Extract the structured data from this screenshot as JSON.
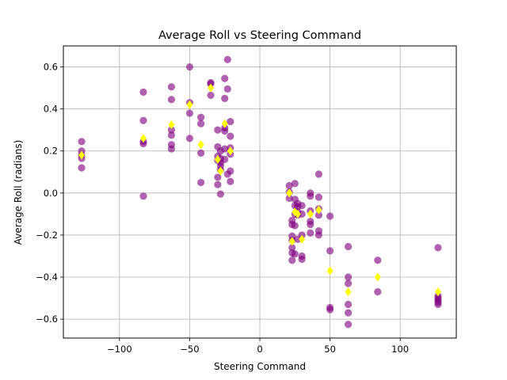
{
  "chart_data": {
    "type": "scatter",
    "title": "Average Roll vs Steering Command",
    "xlabel": "Steering Command",
    "ylabel": "Average Roll (radians)",
    "xlim": [
      -140,
      140
    ],
    "ylim": [
      -0.69,
      0.7
    ],
    "x_ticks": [
      -100,
      -50,
      0,
      50,
      100
    ],
    "x_tick_labels": [
      "−100",
      "−50",
      "0",
      "50",
      "100"
    ],
    "y_ticks": [
      -0.6,
      -0.4,
      -0.2,
      0.0,
      0.2,
      0.4,
      0.6
    ],
    "y_tick_labels": [
      "−0.6",
      "−0.4",
      "−0.2",
      "0.0",
      "0.2",
      "0.4",
      "0.6"
    ],
    "grid": true,
    "legend": "none",
    "series": [
      {
        "marker": "circle",
        "color": "#800080",
        "opacity": 0.62,
        "points": [
          [
            -127,
            0.245
          ],
          [
            -127,
            0.2
          ],
          [
            -127,
            0.18
          ],
          [
            -127,
            0.165
          ],
          [
            -127,
            0.12
          ],
          [
            -83,
            0.48
          ],
          [
            -83,
            0.345
          ],
          [
            -83,
            0.245
          ],
          [
            -83,
            0.235
          ],
          [
            -83,
            -0.015
          ],
          [
            -63,
            0.505
          ],
          [
            -63,
            0.445
          ],
          [
            -63,
            0.3
          ],
          [
            -63,
            0.275
          ],
          [
            -63,
            0.23
          ],
          [
            -63,
            0.21
          ],
          [
            -50,
            0.6
          ],
          [
            -50,
            0.43
          ],
          [
            -50,
            0.38
          ],
          [
            -50,
            0.26
          ],
          [
            -42,
            0.36
          ],
          [
            -42,
            0.33
          ],
          [
            -42,
            0.19
          ],
          [
            -42,
            0.05
          ],
          [
            -35,
            0.525
          ],
          [
            -35,
            0.52
          ],
          [
            -35,
            0.465
          ],
          [
            -30,
            0.3
          ],
          [
            -30,
            0.22
          ],
          [
            -30,
            0.175
          ],
          [
            -30,
            0.155
          ],
          [
            -30,
            0.075
          ],
          [
            -30,
            0.04
          ],
          [
            -28,
            0.2
          ],
          [
            -28,
            0.165
          ],
          [
            -28,
            0.145
          ],
          [
            -28,
            0.13
          ],
          [
            -28,
            0.11
          ],
          [
            -28,
            -0.005
          ],
          [
            -25,
            0.545
          ],
          [
            -25,
            0.45
          ],
          [
            -25,
            0.31
          ],
          [
            -25,
            0.295
          ],
          [
            -25,
            0.21
          ],
          [
            -25,
            0.16
          ],
          [
            -23,
            0.635
          ],
          [
            -23,
            0.495
          ],
          [
            -23,
            0.09
          ],
          [
            -21,
            0.34
          ],
          [
            -21,
            0.27
          ],
          [
            -21,
            0.215
          ],
          [
            -21,
            0.185
          ],
          [
            -21,
            0.105
          ],
          [
            -21,
            0.055
          ],
          [
            21,
            0.035
          ],
          [
            21,
            0.005
          ],
          [
            21,
            -0.025
          ],
          [
            23,
            -0.13
          ],
          [
            23,
            -0.15
          ],
          [
            23,
            -0.205
          ],
          [
            23,
            -0.225
          ],
          [
            23,
            -0.26
          ],
          [
            23,
            -0.285
          ],
          [
            23,
            -0.32
          ],
          [
            25,
            0.045
          ],
          [
            25,
            -0.03
          ],
          [
            25,
            -0.06
          ],
          [
            25,
            -0.1
          ],
          [
            25,
            -0.155
          ],
          [
            25,
            -0.29
          ],
          [
            27,
            -0.05
          ],
          [
            27,
            -0.065
          ],
          [
            27,
            -0.09
          ],
          [
            27,
            -0.105
          ],
          [
            27,
            -0.22
          ],
          [
            30,
            -0.06
          ],
          [
            30,
            -0.1
          ],
          [
            30,
            -0.2
          ],
          [
            30,
            -0.3
          ],
          [
            30,
            -0.315
          ],
          [
            36,
            0.0
          ],
          [
            36,
            -0.015
          ],
          [
            36,
            -0.085
          ],
          [
            36,
            -0.135
          ],
          [
            36,
            -0.15
          ],
          [
            36,
            -0.19
          ],
          [
            42,
            0.09
          ],
          [
            42,
            -0.02
          ],
          [
            42,
            -0.075
          ],
          [
            42,
            -0.105
          ],
          [
            42,
            -0.18
          ],
          [
            42,
            -0.2
          ],
          [
            50,
            -0.11
          ],
          [
            50,
            -0.275
          ],
          [
            50,
            -0.545
          ],
          [
            50,
            -0.555
          ],
          [
            63,
            -0.255
          ],
          [
            63,
            -0.4
          ],
          [
            63,
            -0.43
          ],
          [
            63,
            -0.53
          ],
          [
            63,
            -0.57
          ],
          [
            63,
            -0.625
          ],
          [
            84,
            -0.32
          ],
          [
            84,
            -0.47
          ],
          [
            127,
            -0.26
          ],
          [
            127,
            -0.49
          ],
          [
            127,
            -0.5
          ],
          [
            127,
            -0.51
          ],
          [
            127,
            -0.52
          ],
          [
            127,
            -0.53
          ]
        ]
      },
      {
        "marker": "diamond",
        "color": "#ffff00",
        "opacity": 1,
        "points": [
          [
            -127,
            0.18
          ],
          [
            -83,
            0.26
          ],
          [
            -63,
            0.325
          ],
          [
            -50,
            0.42
          ],
          [
            -42,
            0.23
          ],
          [
            -35,
            0.5
          ],
          [
            -30,
            0.16
          ],
          [
            -28,
            0.105
          ],
          [
            -25,
            0.33
          ],
          [
            -21,
            0.2
          ],
          [
            21,
            0.0
          ],
          [
            23,
            -0.23
          ],
          [
            25,
            -0.09
          ],
          [
            27,
            -0.1
          ],
          [
            30,
            -0.22
          ],
          [
            36,
            -0.1
          ],
          [
            42,
            -0.08
          ],
          [
            50,
            -0.37
          ],
          [
            63,
            -0.47
          ],
          [
            84,
            -0.4
          ],
          [
            127,
            -0.47
          ]
        ]
      }
    ]
  }
}
